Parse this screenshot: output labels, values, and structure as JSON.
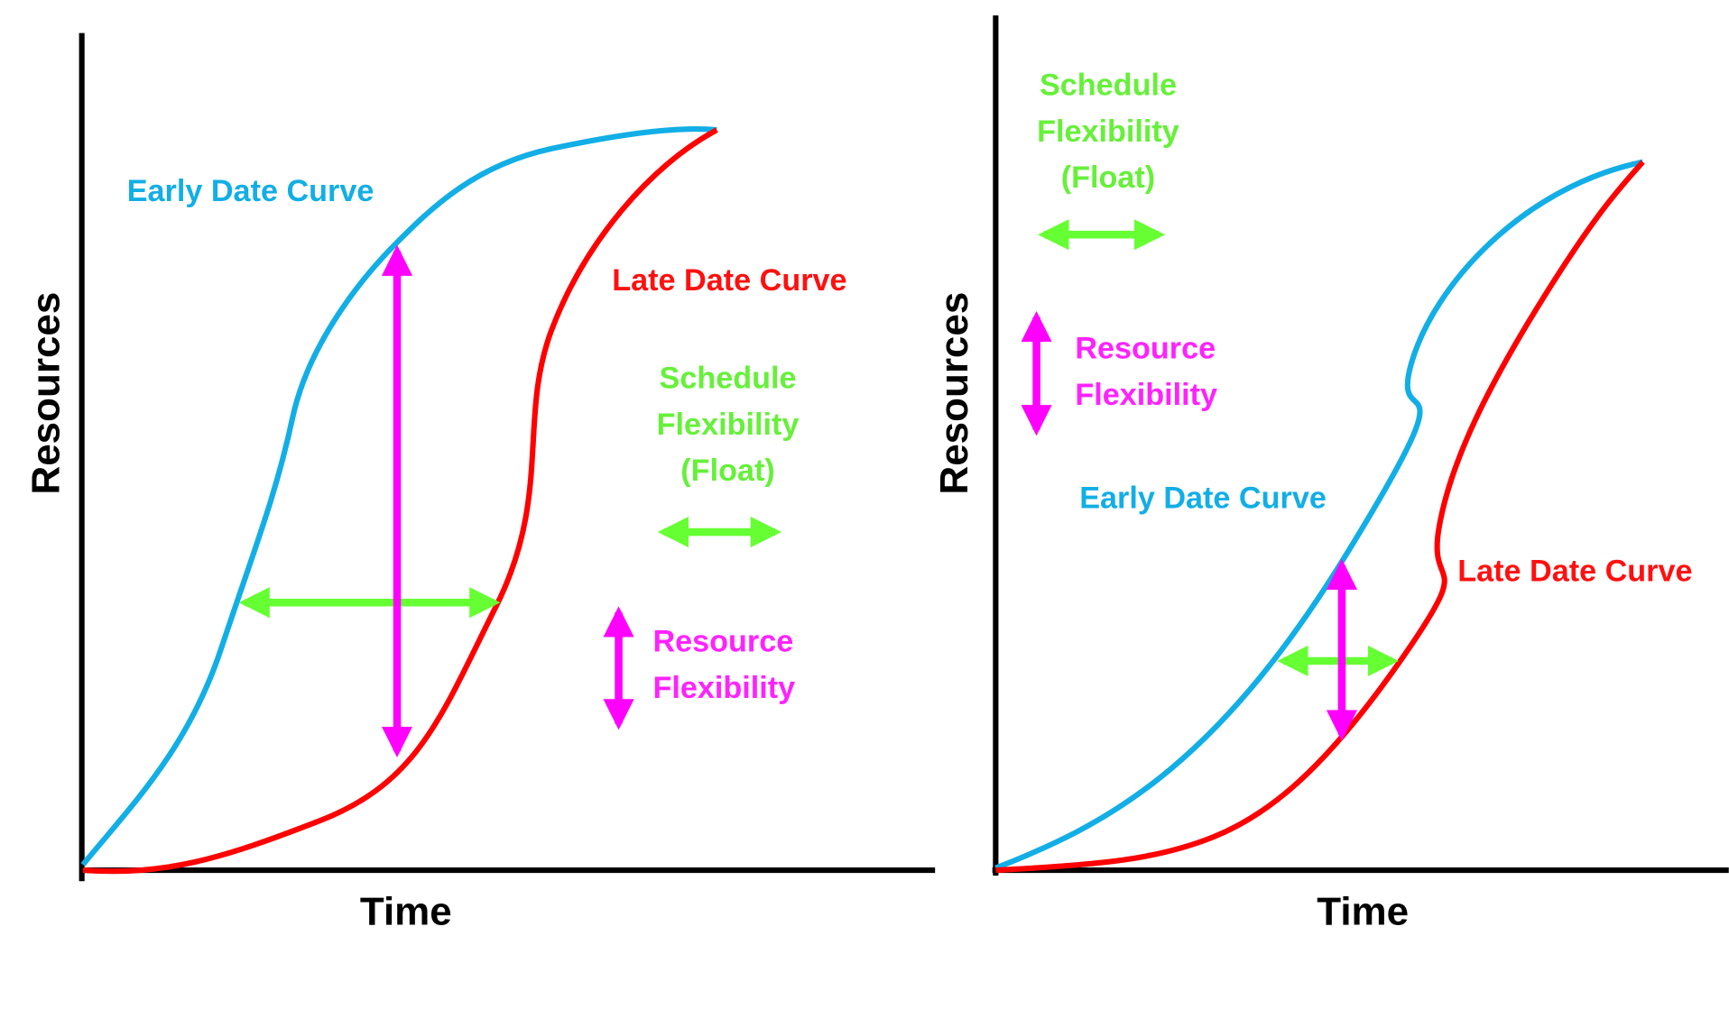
{
  "panels": [
    {
      "y_label": "Resources",
      "x_label": "Time",
      "early_label": "Early Date Curve",
      "late_label": "Late Date Curve",
      "schedule_label": [
        "Schedule",
        "Flexibility",
        "(Float)"
      ],
      "resource_label": [
        "Resource",
        "Flexibility"
      ]
    },
    {
      "y_label": "Resources",
      "x_label": "Time",
      "early_label": "Early Date Curve",
      "late_label": "Late Date Curve",
      "schedule_label": [
        "Schedule",
        "Flexibility",
        "(Float)"
      ],
      "resource_label": [
        "Resource",
        "Flexibility"
      ]
    }
  ]
}
